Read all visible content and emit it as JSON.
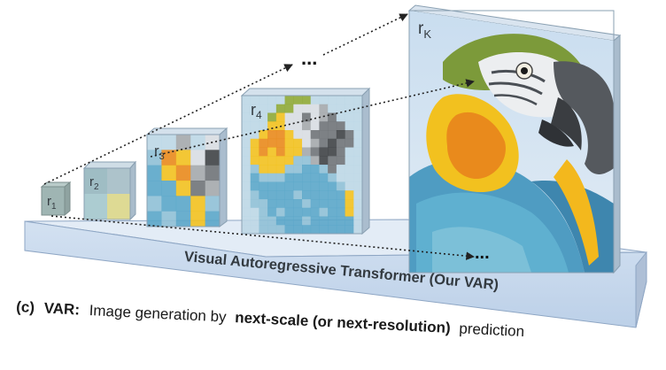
{
  "diagram": {
    "scale_labels": [
      {
        "base": "r",
        "sub": "1"
      },
      {
        "base": "r",
        "sub": "2"
      },
      {
        "base": "r",
        "sub": "3"
      },
      {
        "base": "r",
        "sub": "4"
      },
      {
        "base": "r",
        "sub": "K"
      }
    ],
    "ellipsis_top": "...",
    "ellipsis_bottom": "...",
    "platform_label": "Visual Autoregressive Transformer  (Our VAR)",
    "caption": {
      "tag": "(c)",
      "bold_lead": "VAR:",
      "part1": "Image generation by",
      "bold_mid": "next-scale (or next-resolution)",
      "part2": "prediction"
    }
  },
  "colors": {
    "platform_top": "#dce7f4",
    "platform_front": "#c4d6ec",
    "platform_edge": "#8ea6c4",
    "parrot_blue": "#5aa6c9",
    "parrot_yellow": "#f2c11f",
    "parrot_orange": "#e98a1c",
    "parrot_gray": "#6f7378",
    "parrot_green": "#8ea836"
  }
}
